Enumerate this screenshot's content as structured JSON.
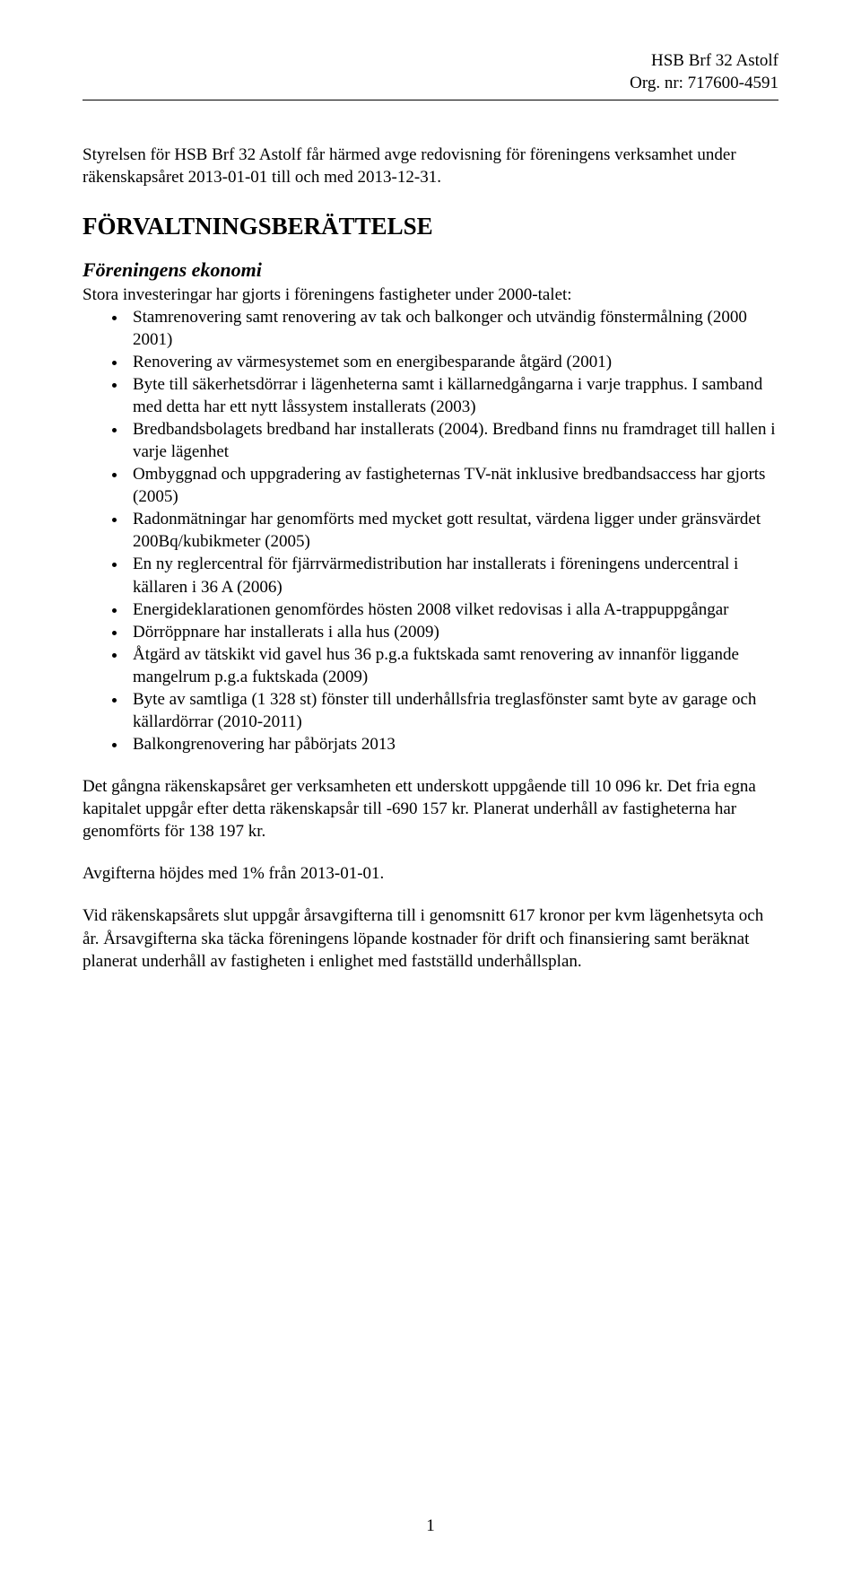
{
  "header": {
    "line1": "HSB Brf 32 Astolf",
    "line2": "Org. nr: 717600-4591"
  },
  "intro": "Styrelsen för HSB Brf 32 Astolf får härmed avge redovisning för föreningens verksamhet under räkenskapsåret 2013-01-01 till och med 2013-12-31.",
  "h1": "FÖRVALTNINGSBERÄTTELSE",
  "h2": "Föreningens ekonomi",
  "sub_intro": "Stora investeringar har gjorts i föreningens fastigheter under 2000-talet:",
  "bullets": [
    "Stamrenovering samt renovering av tak och balkonger och utvändig fönstermålning (2000 2001)",
    "Renovering av värmesystemet som en energibesparande åtgärd (2001)",
    "Byte till säkerhetsdörrar i lägenheterna samt i källarnedgångarna i varje trapphus. I samband med detta har ett nytt låssystem installerats (2003)",
    "Bredbandsbolagets bredband har installerats (2004). Bredband finns nu framdraget till hallen i varje lägenhet",
    "Ombyggnad och uppgradering av fastigheternas TV-nät inklusive bredbandsaccess har gjorts (2005)",
    "Radonmätningar har genomförts med mycket gott resultat, värdena ligger under gränsvärdet 200Bq/kubikmeter (2005)",
    "En ny reglercentral för fjärrvärmedistribution har installerats i föreningens undercentral i källaren i 36 A (2006)",
    "Energideklarationen genomfördes hösten 2008 vilket redovisas i alla A-trappuppgångar",
    "Dörröppnare har installerats i alla hus (2009)",
    "Åtgärd av tätskikt vid gavel hus 36 p.g.a fuktskada samt renovering av innanför liggande mangelrum p.g.a fuktskada (2009)",
    "Byte av samtliga (1 328 st) fönster till underhållsfria treglasfönster samt byte av garage och källardörrar (2010-2011)",
    "Balkongrenovering har påbörjats 2013"
  ],
  "p1": "Det gångna räkenskapsåret ger verksamheten ett underskott uppgående till 10 096 kr. Det fria egna kapitalet uppgår efter detta räkenskapsår till -690 157 kr. Planerat underhåll av fastigheterna har genomförts för 138 197 kr.",
  "p2": "Avgifterna höjdes med 1% från 2013-01-01.",
  "p3": "Vid räkenskapsårets slut uppgår årsavgifterna till i genomsnitt 617 kronor per kvm lägenhetsyta och år. Årsavgifterna ska täcka föreningens löpande kostnader för drift och finansiering samt beräknat planerat underhåll av fastigheten i enlighet med fastställd underhållsplan.",
  "page_number": "1"
}
